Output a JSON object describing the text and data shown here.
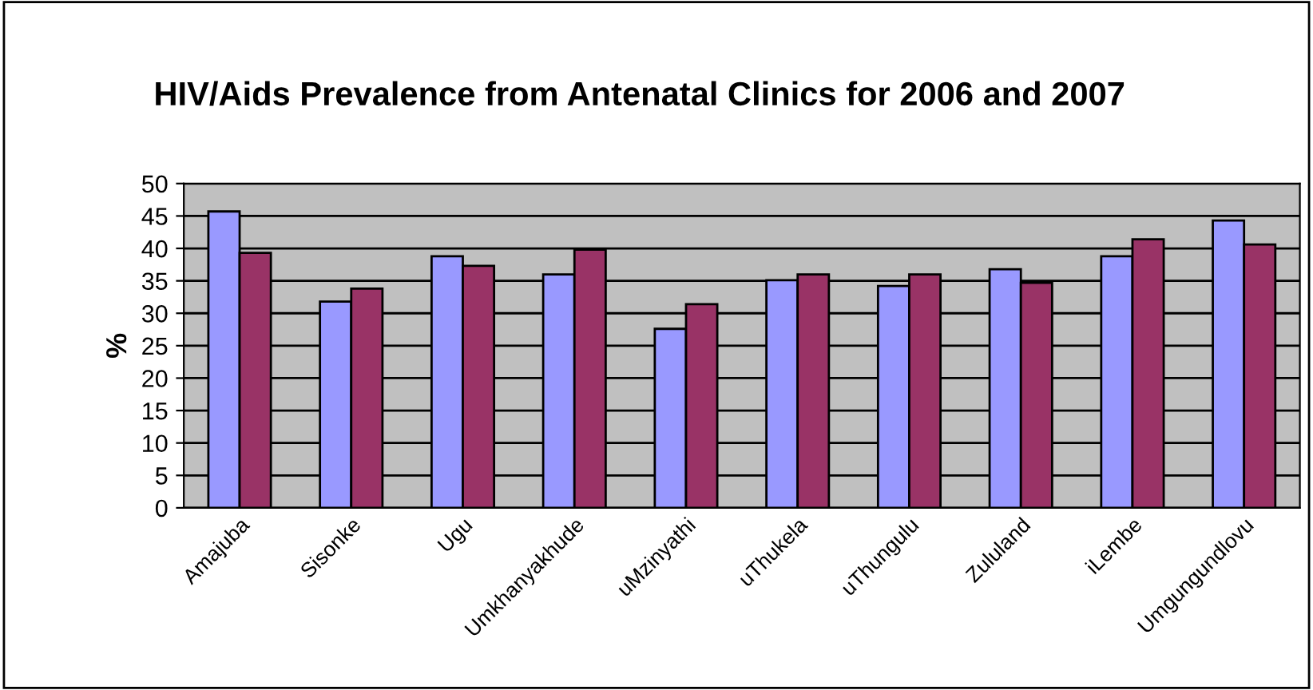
{
  "chart_data": {
    "type": "bar",
    "title": "HIV/Aids Prevalence from Antenatal Clinics for 2006 and 2007",
    "ylabel": "%",
    "categories": [
      "Amajuba",
      "Sisonke",
      "Ugu",
      "Umkhanyakhude",
      "uMzinyathi",
      "uThukela",
      "uThungulu",
      "Zululand",
      "iLembe",
      "Umgungundlovu"
    ],
    "series": [
      {
        "color": "#9999ff",
        "values": [
          45.7,
          31.8,
          38.8,
          36.0,
          27.6,
          35.1,
          34.2,
          36.8,
          38.8,
          44.3
        ]
      },
      {
        "color": "#993366",
        "values": [
          39.3,
          33.8,
          37.3,
          39.8,
          31.4,
          36.0,
          36.0,
          34.7,
          41.4,
          40.6
        ]
      }
    ],
    "ylim": [
      0,
      50
    ],
    "yticks": [
      0,
      5,
      10,
      15,
      20,
      25,
      30,
      35,
      40,
      45,
      50
    ],
    "grid": "y"
  }
}
